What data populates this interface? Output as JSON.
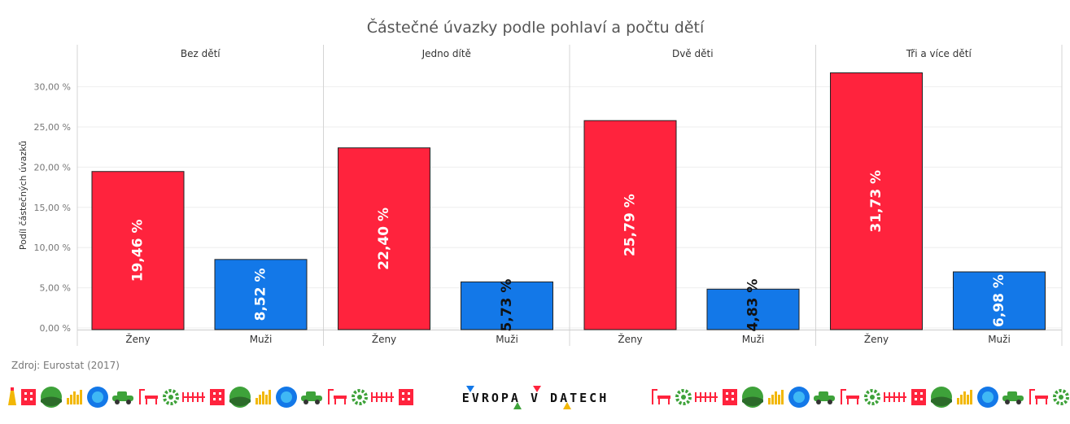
{
  "chart_data": {
    "type": "bar",
    "title": "Částečné úvazky podle pohlaví a počtu dětí",
    "ylabel": "Podíl částečných úvazků",
    "ylim": [
      0,
      35
    ],
    "yticks": [
      {
        "value": 0,
        "label": "0,00 %"
      },
      {
        "value": 5,
        "label": "5,00 %"
      },
      {
        "value": 10,
        "label": "10,00 %"
      },
      {
        "value": 15,
        "label": "15,00 %"
      },
      {
        "value": 20,
        "label": "20,00 %"
      },
      {
        "value": 25,
        "label": "25,00 %"
      },
      {
        "value": 30,
        "label": "30,00 %"
      }
    ],
    "grid": true,
    "categories": [
      "Ženy",
      "Muži"
    ],
    "colors": {
      "Ženy": "#ff233d",
      "Muži": "#1378e8"
    },
    "panels": [
      {
        "name": "Bez dětí",
        "values": [
          19.46,
          8.52
        ],
        "labels": [
          "19,46 %",
          "8,52 %"
        ]
      },
      {
        "name": "Jedno dítě",
        "values": [
          22.4,
          5.73
        ],
        "labels": [
          "22,40 %",
          "5,73 %"
        ]
      },
      {
        "name": "Dvě děti",
        "values": [
          25.79,
          4.83
        ],
        "labels": [
          "25,79 %",
          "4,83 %"
        ]
      },
      {
        "name": "Tři a více dětí",
        "values": [
          31.73,
          6.98
        ],
        "labels": [
          "31,73 %",
          "6,98 %"
        ]
      }
    ]
  },
  "source": "Zdroj: Eurostat (2017)",
  "brand": "EVROPA V DATECH",
  "footer_icons": [
    "building-icon",
    "tree-icon",
    "chart-icon",
    "sun-icon",
    "car-icon",
    "bench-icon",
    "gear-icon",
    "fence-icon"
  ]
}
